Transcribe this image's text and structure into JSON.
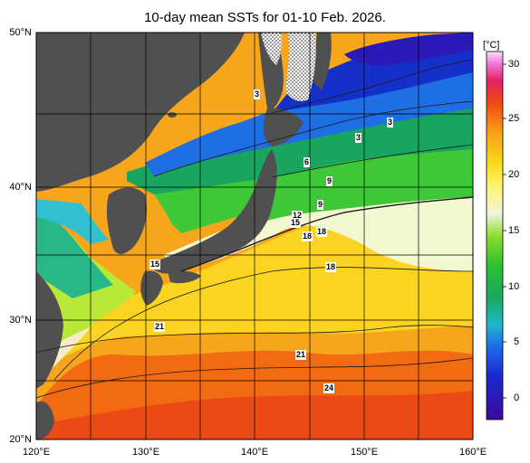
{
  "title": "10-day mean SSTs for 01-10 Feb. 2026.",
  "map": {
    "lat_labels": [
      "50°N",
      "40°N",
      "30°N",
      "20°N"
    ],
    "lon_labels": [
      "120°E",
      "130°E",
      "140°E",
      "150°E",
      "160°E"
    ],
    "lat_range": [
      20,
      50
    ],
    "lon_range": [
      120,
      160
    ],
    "grid": true
  },
  "colorbar": {
    "unit": "[°C]",
    "ticks": [
      "30",
      "25",
      "20",
      "15",
      "10",
      "5",
      "0"
    ],
    "range": [
      -2,
      32
    ]
  },
  "contour_labels": [
    "3",
    "3",
    "3",
    "6",
    "9",
    "9",
    "12",
    "15",
    "18",
    "18",
    "18",
    "15",
    "21",
    "21",
    "24"
  ],
  "colors": {
    "land": "#505050",
    "sea_ice": "#ffffff"
  }
}
